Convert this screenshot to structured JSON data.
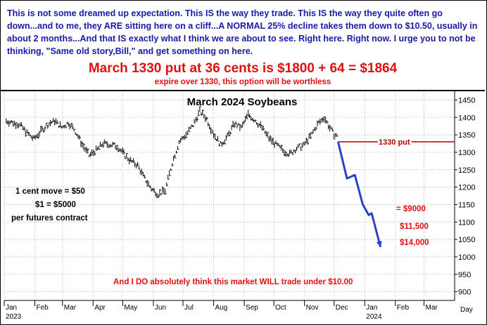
{
  "header": {
    "intro": "This is not some dreamed up expectation. This IS the way they trade. This IS the way they quite often go down...and to me, they ARE sitting here on a cliff...A NORMAL 25% decline takes them down to $10.50, usually in about 2 months...And that IS exactly what I think we are about to see. Right here. Right now. I urge you to not be thinking, \"Same old story,Bill,\" and get something on here.",
    "headline": "March 1330 put at 36 cents is $1800 + 64 = $1864",
    "subline": "expire over 1330, this option will be worthless"
  },
  "chart_data": {
    "type": "line",
    "title": "March 2024 Soybeans",
    "xlabel": "",
    "ylabel": "",
    "x_unit": "Day",
    "xlim": [
      "2023-01-01",
      "2024-04-01"
    ],
    "ylim": [
      875,
      1475
    ],
    "grid": true,
    "y_ticks": [
      900,
      950,
      1000,
      1050,
      1100,
      1150,
      1200,
      1250,
      1300,
      1350,
      1400,
      1450
    ],
    "months": [
      "Jan",
      "Feb",
      "Mar",
      "Apr",
      "May",
      "Jun",
      "Jul",
      "Aug",
      "Sep",
      "Oct",
      "Nov",
      "Dec",
      "Jan",
      "Feb",
      "Mar"
    ],
    "years": [
      "2023",
      "2024"
    ],
    "series": [
      {
        "style": "ohlc-bars",
        "color": "#000000",
        "points": [
          {
            "date": "2023-01-03",
            "price": 1390
          },
          {
            "date": "2023-01-10",
            "price": 1385
          },
          {
            "date": "2023-01-17",
            "price": 1378
          },
          {
            "date": "2023-01-24",
            "price": 1355
          },
          {
            "date": "2023-01-31",
            "price": 1338
          },
          {
            "date": "2023-02-07",
            "price": 1360
          },
          {
            "date": "2023-02-14",
            "price": 1380
          },
          {
            "date": "2023-02-21",
            "price": 1390
          },
          {
            "date": "2023-02-28",
            "price": 1372
          },
          {
            "date": "2023-03-07",
            "price": 1385
          },
          {
            "date": "2023-03-14",
            "price": 1360
          },
          {
            "date": "2023-03-21",
            "price": 1322
          },
          {
            "date": "2023-03-28",
            "price": 1290
          },
          {
            "date": "2023-04-04",
            "price": 1305
          },
          {
            "date": "2023-04-11",
            "price": 1325
          },
          {
            "date": "2023-04-18",
            "price": 1322
          },
          {
            "date": "2023-04-25",
            "price": 1318
          },
          {
            "date": "2023-05-02",
            "price": 1295
          },
          {
            "date": "2023-05-09",
            "price": 1275
          },
          {
            "date": "2023-05-16",
            "price": 1262
          },
          {
            "date": "2023-05-23",
            "price": 1225
          },
          {
            "date": "2023-05-30",
            "price": 1195
          },
          {
            "date": "2023-06-06",
            "price": 1180
          },
          {
            "date": "2023-06-13",
            "price": 1190
          },
          {
            "date": "2023-06-20",
            "price": 1270
          },
          {
            "date": "2023-06-27",
            "price": 1330
          },
          {
            "date": "2023-07-04",
            "price": 1350
          },
          {
            "date": "2023-07-11",
            "price": 1378
          },
          {
            "date": "2023-07-18",
            "price": 1418
          },
          {
            "date": "2023-07-25",
            "price": 1395
          },
          {
            "date": "2023-08-01",
            "price": 1352
          },
          {
            "date": "2023-08-08",
            "price": 1322
          },
          {
            "date": "2023-08-15",
            "price": 1345
          },
          {
            "date": "2023-08-22",
            "price": 1382
          },
          {
            "date": "2023-08-29",
            "price": 1370
          },
          {
            "date": "2023-09-05",
            "price": 1408
          },
          {
            "date": "2023-09-12",
            "price": 1392
          },
          {
            "date": "2023-09-19",
            "price": 1370
          },
          {
            "date": "2023-09-26",
            "price": 1340
          },
          {
            "date": "2023-10-03",
            "price": 1322
          },
          {
            "date": "2023-10-10",
            "price": 1305
          },
          {
            "date": "2023-10-17",
            "price": 1295
          },
          {
            "date": "2023-10-24",
            "price": 1312
          },
          {
            "date": "2023-10-31",
            "price": 1320
          },
          {
            "date": "2023-11-07",
            "price": 1345
          },
          {
            "date": "2023-11-14",
            "price": 1380
          },
          {
            "date": "2023-11-21",
            "price": 1400
          },
          {
            "date": "2023-11-28",
            "price": 1362
          },
          {
            "date": "2023-12-05",
            "price": 1340
          }
        ]
      },
      {
        "style": "projection-arrow",
        "color": "#2a42c8",
        "points": [
          {
            "date": "2023-12-05",
            "price": 1330
          },
          {
            "date": "2023-12-14",
            "price": 1225
          },
          {
            "date": "2023-12-22",
            "price": 1235
          },
          {
            "date": "2023-12-30",
            "price": 1150
          },
          {
            "date": "2024-01-05",
            "price": 1120
          },
          {
            "date": "2024-01-08",
            "price": 1125
          },
          {
            "date": "2024-01-17",
            "price": 1028
          }
        ]
      }
    ],
    "put_line": {
      "price": 1330,
      "start": "2023-12-05",
      "label": "1330 put",
      "color": "#b30000"
    },
    "annotations": {
      "left": [
        "1 cent move = $50",
        "$1 = $5000",
        "per futures contract"
      ],
      "values": [
        "= $9000",
        "$11,500",
        "$14,000"
      ],
      "bottom": "And I DO absolutely think this market WILL trade under $10.00"
    }
  }
}
